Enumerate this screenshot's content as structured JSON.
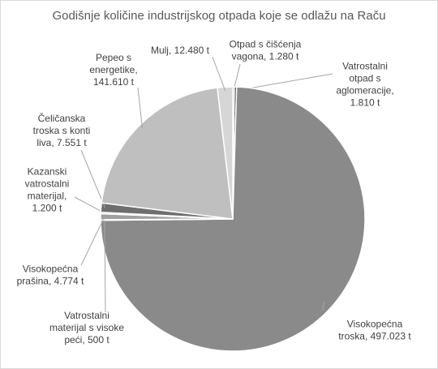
{
  "chart_data": {
    "type": "pie",
    "title": "Godišnje količine industrijskog otpada koje se odlažu na Raču",
    "values": [
      1280,
      1810,
      497023,
      500,
      4774,
      1200,
      7551,
      141610,
      12480
    ],
    "value_labels": [
      "Otpad s čišćenja vagona, 1.280 t",
      "Vatrostalni otpad s aglomeracije, 1.810 t",
      "Visokopećna troska, 497.023 t",
      "Vatrostalni materijal s visoke peći, 500 t",
      "Visokopećna prašina, 4.774 t",
      "Kazanski vatrostalni materijal, 1.200 t",
      "Čeličanska troska s konti liva, 7.551 t",
      "Pepeo s energetike, 141.610 t",
      "Mulj, 12.480 t"
    ],
    "colors": [
      "#5a5a5a",
      "#3f3f3f",
      "#8a8a8a",
      "#4d4d4d",
      "#a0a0a0",
      "#b2b2b2",
      "#6e6e6e",
      "#bfbfbf",
      "#d6d6d6"
    ]
  }
}
